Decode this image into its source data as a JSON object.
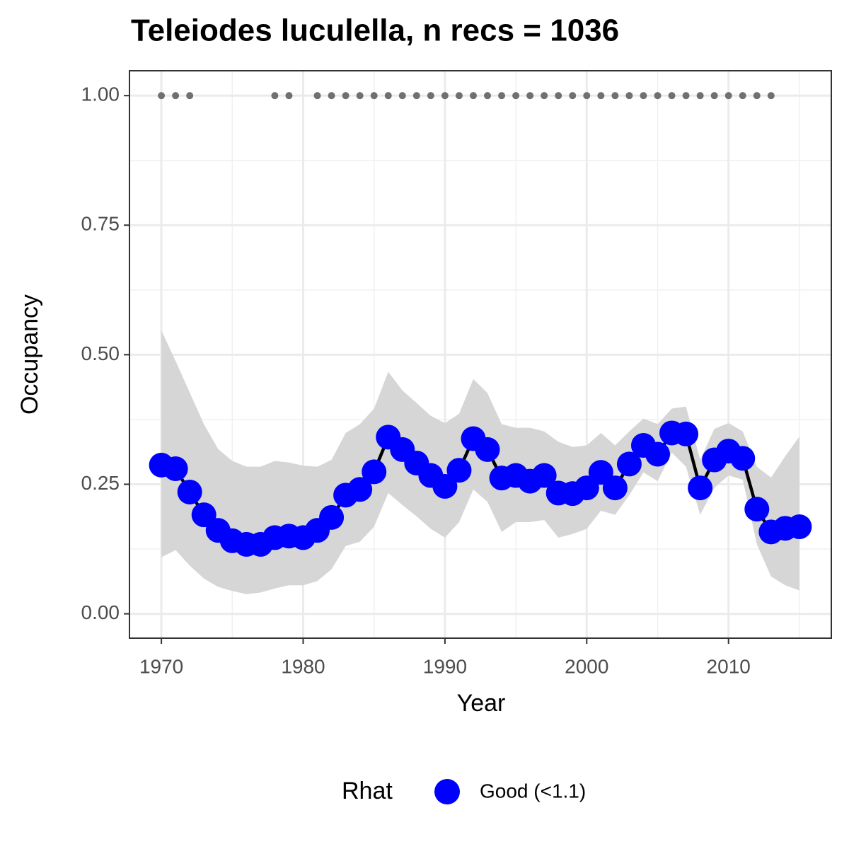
{
  "chart_data": {
    "type": "line",
    "title": "Teleiodes luculella, n recs = 1036",
    "x_label": "Year",
    "y_label": "Occupancy",
    "legend_title": "Rhat",
    "x": [
      1970,
      1971,
      1972,
      1973,
      1974,
      1975,
      1976,
      1977,
      1978,
      1979,
      1980,
      1981,
      1982,
      1983,
      1984,
      1985,
      1986,
      1987,
      1988,
      1989,
      1990,
      1991,
      1992,
      1993,
      1994,
      1995,
      1996,
      1997,
      1998,
      1999,
      2000,
      2001,
      2002,
      2003,
      2004,
      2005,
      2006,
      2007,
      2008,
      2009,
      2010,
      2011,
      2012,
      2013,
      2014,
      2015
    ],
    "series": [
      {
        "name": "Good (<1.1)",
        "color": "#0000ff",
        "line_color": "#000000",
        "values": [
          0.287,
          0.28,
          0.235,
          0.191,
          0.161,
          0.141,
          0.134,
          0.134,
          0.147,
          0.15,
          0.147,
          0.161,
          0.186,
          0.229,
          0.24,
          0.274,
          0.341,
          0.317,
          0.291,
          0.267,
          0.246,
          0.277,
          0.338,
          0.317,
          0.262,
          0.267,
          0.256,
          0.267,
          0.233,
          0.232,
          0.243,
          0.273,
          0.243,
          0.289,
          0.325,
          0.308,
          0.349,
          0.347,
          0.243,
          0.297,
          0.314,
          0.3,
          0.202,
          0.158,
          0.165,
          0.168
        ]
      }
    ],
    "band": {
      "color": "#d6d6d6",
      "upper": [
        0.547,
        0.488,
        0.427,
        0.366,
        0.318,
        0.295,
        0.284,
        0.284,
        0.295,
        0.292,
        0.286,
        0.284,
        0.297,
        0.349,
        0.366,
        0.396,
        0.467,
        0.431,
        0.407,
        0.382,
        0.368,
        0.386,
        0.453,
        0.426,
        0.366,
        0.359,
        0.359,
        0.352,
        0.332,
        0.322,
        0.325,
        0.349,
        0.325,
        0.352,
        0.377,
        0.366,
        0.396,
        0.4,
        0.297,
        0.357,
        0.368,
        0.352,
        0.284,
        0.263,
        0.304,
        0.342
      ],
      "lower": [
        0.109,
        0.123,
        0.093,
        0.068,
        0.052,
        0.044,
        0.038,
        0.041,
        0.049,
        0.055,
        0.055,
        0.063,
        0.086,
        0.131,
        0.139,
        0.168,
        0.233,
        0.21,
        0.188,
        0.164,
        0.147,
        0.177,
        0.24,
        0.216,
        0.158,
        0.177,
        0.177,
        0.181,
        0.147,
        0.154,
        0.164,
        0.199,
        0.191,
        0.229,
        0.273,
        0.256,
        0.311,
        0.284,
        0.191,
        0.243,
        0.267,
        0.259,
        0.134,
        0.072,
        0.055,
        0.045
      ]
    },
    "records": {
      "color": "#707070",
      "x": [
        1970,
        1971,
        1972,
        1978,
        1979,
        1981,
        1982,
        1983,
        1984,
        1985,
        1986,
        1987,
        1988,
        1989,
        1990,
        1991,
        1992,
        1993,
        1994,
        1995,
        1996,
        1997,
        1998,
        1999,
        2000,
        2001,
        2002,
        2003,
        2004,
        2005,
        2006,
        2007,
        2008,
        2009,
        2010,
        2011,
        2012,
        2013
      ],
      "values": [
        1,
        1,
        1,
        1,
        1,
        1,
        1,
        1,
        1,
        1,
        1,
        1,
        1,
        1,
        1,
        1,
        1,
        1,
        1,
        1,
        1,
        1,
        1,
        1,
        1,
        1,
        1,
        1,
        1,
        1,
        1,
        1,
        1,
        1,
        1,
        1,
        1,
        1
      ]
    },
    "xlim": [
      1967.75,
      2017.25
    ],
    "ylim": [
      -0.047,
      1.048
    ],
    "xticks": [
      1970,
      1980,
      1990,
      2000,
      2010
    ],
    "xminorticks": [
      1975,
      1985,
      1995,
      2005,
      2015
    ],
    "yticks": [
      {
        "value": 0,
        "label": "0.00"
      },
      {
        "value": 0.25,
        "label": "0.25"
      },
      {
        "value": 0.5,
        "label": "0.50"
      },
      {
        "value": 0.75,
        "label": "0.75"
      },
      {
        "value": 1,
        "label": "1.00"
      }
    ],
    "yminorticks": [
      0.125,
      0.375,
      0.625,
      0.875
    ],
    "grid": true
  }
}
